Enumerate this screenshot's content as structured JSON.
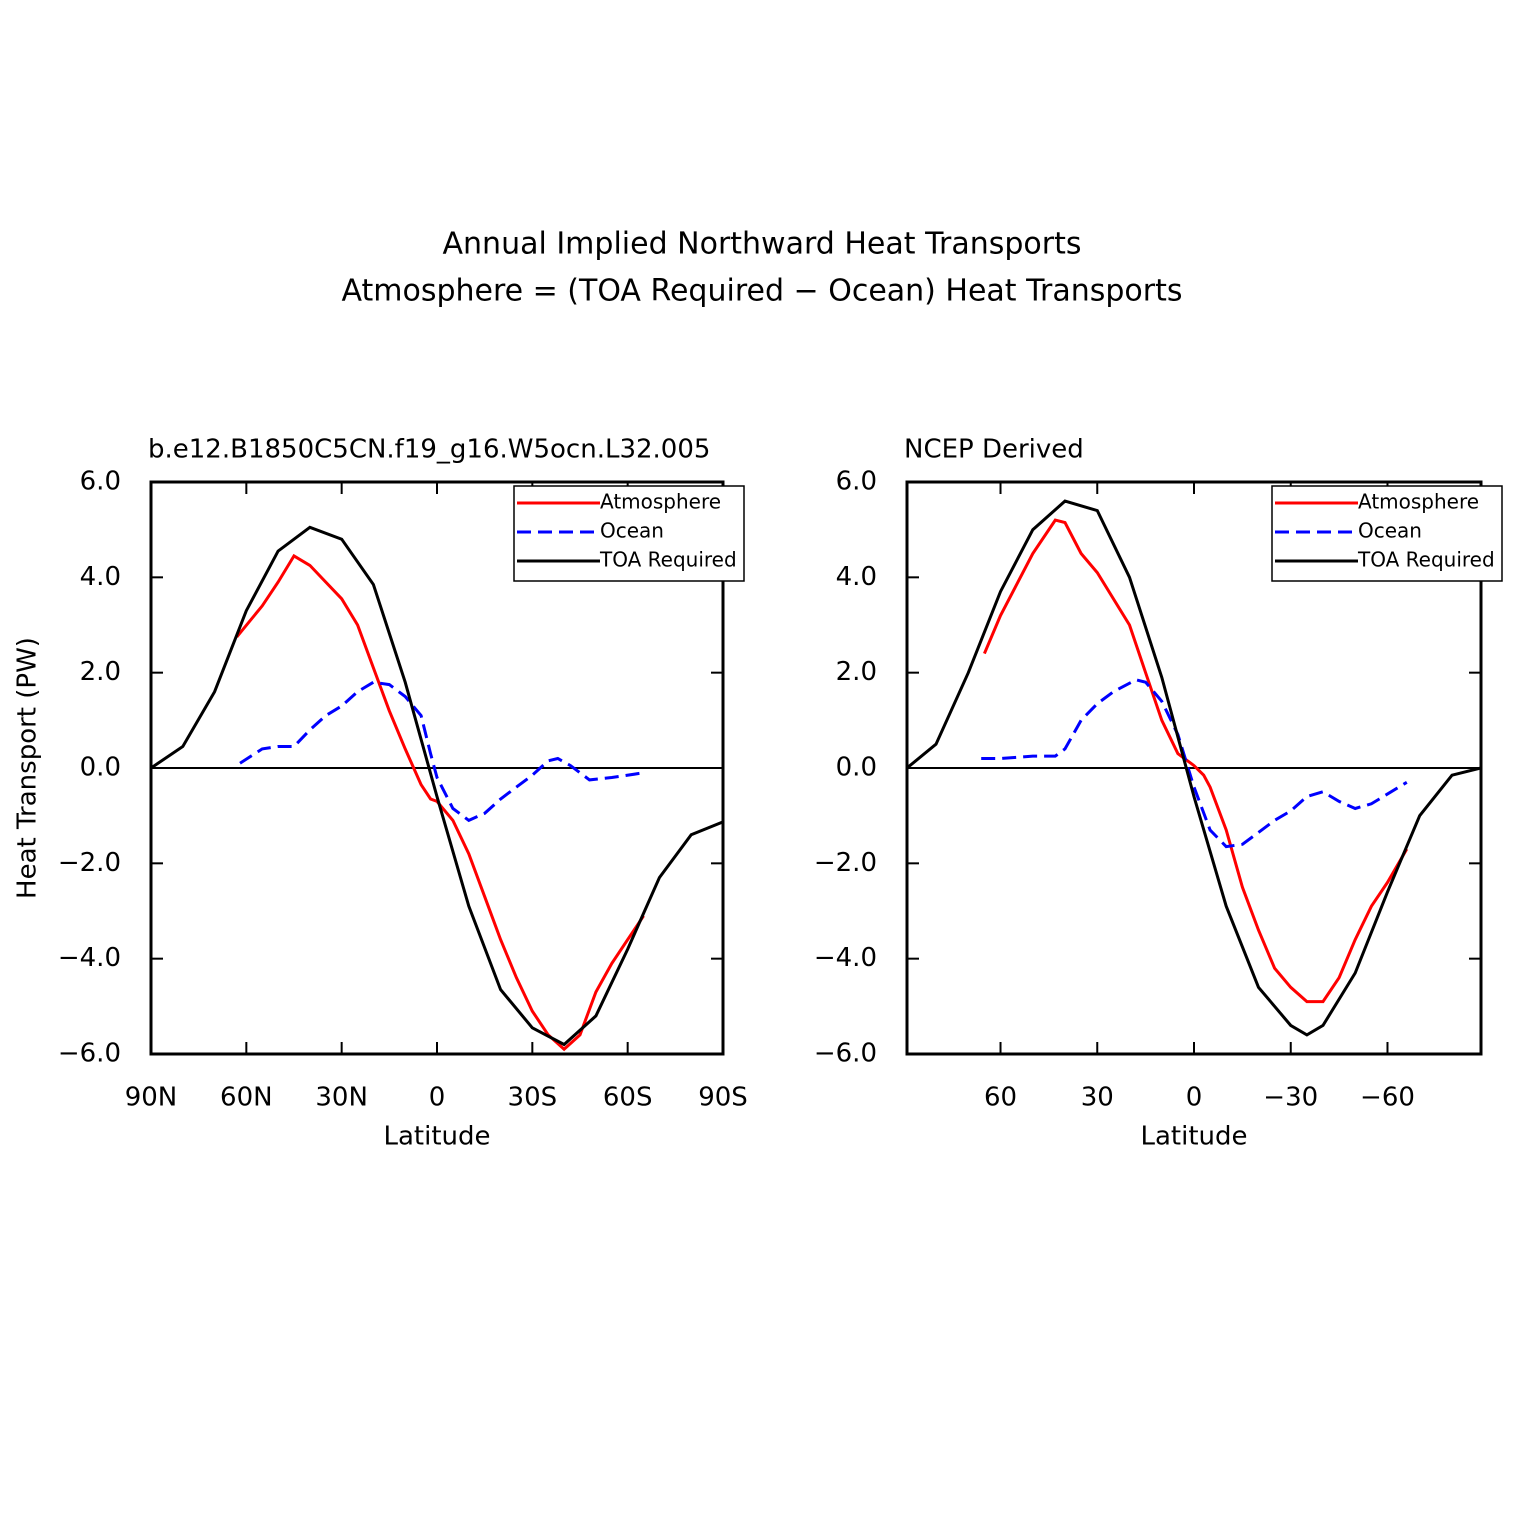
{
  "title": [
    "Annual Implied Northward Heat Transports",
    "Atmosphere = (TOA Required − Ocean) Heat Transports"
  ],
  "chart_data": [
    {
      "type": "line",
      "title": "b.e12.B1850C5CN.f19_g16.W5ocn.L32.005",
      "xlabel": "Latitude",
      "ylabel": "Heat Transport (PW)",
      "xlim": [
        90,
        -90
      ],
      "xticks": [
        {
          "value": 90,
          "label": "90N"
        },
        {
          "value": 60,
          "label": "60N"
        },
        {
          "value": 30,
          "label": "30N"
        },
        0,
        {
          "value": -30,
          "label": "30S"
        },
        {
          "value": -60,
          "label": "60S"
        },
        {
          "value": -90,
          "label": "90S"
        }
      ],
      "ylim": [
        -6,
        6
      ],
      "yticks": [
        {
          "value": 6,
          "label": "6.0"
        },
        {
          "value": 4,
          "label": "4.0"
        },
        {
          "value": 2,
          "label": "2.0"
        },
        {
          "value": 0,
          "label": "0.0"
        },
        {
          "value": -2,
          "label": "−2.0"
        },
        {
          "value": -4,
          "label": "−4.0"
        },
        {
          "value": -6,
          "label": "−6.0"
        }
      ],
      "zero_line": true,
      "legend": "upper right",
      "series": [
        {
          "name": "Atmosphere",
          "color": "#ff0000",
          "dashed": false,
          "x": [
            63,
            55,
            50,
            45,
            40,
            35,
            30,
            25,
            20,
            15,
            10,
            5,
            2,
            0,
            -5,
            -10,
            -15,
            -20,
            -25,
            -30,
            -35,
            -40,
            -45,
            -50,
            -55,
            -60,
            -65
          ],
          "values": [
            2.75,
            3.4,
            3.9,
            4.45,
            4.25,
            3.9,
            3.55,
            3.0,
            2.1,
            1.2,
            0.4,
            -0.35,
            -0.65,
            -0.7,
            -1.1,
            -1.8,
            -2.7,
            -3.6,
            -4.4,
            -5.1,
            -5.6,
            -5.9,
            -5.6,
            -4.7,
            -4.1,
            -3.6,
            -3.1
          ]
        },
        {
          "name": "Ocean",
          "color": "#0000ff",
          "dashed": true,
          "x": [
            62,
            55,
            50,
            45,
            40,
            35,
            30,
            25,
            20,
            15,
            10,
            5,
            2,
            0,
            -5,
            -10,
            -15,
            -20,
            -25,
            -30,
            -35,
            -38,
            -42,
            -48,
            -55,
            -65
          ],
          "values": [
            0.1,
            0.4,
            0.45,
            0.45,
            0.8,
            1.1,
            1.3,
            1.6,
            1.8,
            1.75,
            1.5,
            1.1,
            0.3,
            -0.2,
            -0.85,
            -1.1,
            -0.95,
            -0.65,
            -0.4,
            -0.15,
            0.15,
            0.2,
            0.05,
            -0.25,
            -0.2,
            -0.1
          ]
        },
        {
          "name": "TOA Required",
          "color": "#000000",
          "dashed": false,
          "x": [
            90,
            80,
            70,
            60,
            50,
            40,
            30,
            20,
            10,
            0,
            -10,
            -20,
            -30,
            -40,
            -50,
            -60,
            -70,
            -80,
            -90
          ],
          "values": [
            0.0,
            0.45,
            1.6,
            3.3,
            4.55,
            5.05,
            4.8,
            3.85,
            1.8,
            -0.6,
            -2.9,
            -4.65,
            -5.45,
            -5.8,
            -5.2,
            -3.8,
            -2.3,
            -1.4,
            -1.13
          ]
        }
      ]
    },
    {
      "type": "line",
      "title": "NCEP Derived",
      "xlabel": "Latitude",
      "xlim": [
        89,
        -89
      ],
      "xticks": [
        60,
        30,
        0,
        {
          "value": -30,
          "label": "−30"
        },
        {
          "value": -60,
          "label": "−60"
        }
      ],
      "ylim": [
        -6,
        6
      ],
      "yticks": [
        {
          "value": 6,
          "label": "6.0"
        },
        {
          "value": 4,
          "label": "4.0"
        },
        {
          "value": 2,
          "label": "2.0"
        },
        {
          "value": 0,
          "label": "0.0"
        },
        {
          "value": -2,
          "label": "−2.0"
        },
        {
          "value": -4,
          "label": "−4.0"
        },
        {
          "value": -6,
          "label": "−6.0"
        }
      ],
      "zero_line": true,
      "legend": "upper right",
      "series": [
        {
          "name": "Atmosphere",
          "color": "#ff0000",
          "dashed": false,
          "x": [
            65,
            60,
            50,
            43,
            40,
            35,
            30,
            20,
            15,
            10,
            5,
            0,
            -3,
            -5,
            -10,
            -15,
            -20,
            -25,
            -30,
            -35,
            -40,
            -45,
            -50,
            -55,
            -60,
            -66
          ],
          "values": [
            2.4,
            3.2,
            4.5,
            5.2,
            5.15,
            4.5,
            4.1,
            3.0,
            2.0,
            1.0,
            0.3,
            0.05,
            -0.15,
            -0.4,
            -1.3,
            -2.5,
            -3.4,
            -4.2,
            -4.6,
            -4.9,
            -4.9,
            -4.4,
            -3.6,
            -2.9,
            -2.4,
            -1.7
          ]
        },
        {
          "name": "Ocean",
          "color": "#0000ff",
          "dashed": true,
          "x": [
            66,
            60,
            50,
            43,
            40,
            35,
            30,
            25,
            18,
            15,
            10,
            5,
            0,
            -5,
            -10,
            -15,
            -20,
            -25,
            -30,
            -35,
            -40,
            -45,
            -50,
            -55,
            -66
          ],
          "values": [
            0.2,
            0.2,
            0.25,
            0.25,
            0.4,
            1.0,
            1.35,
            1.6,
            1.85,
            1.8,
            1.4,
            0.7,
            -0.4,
            -1.3,
            -1.65,
            -1.6,
            -1.35,
            -1.1,
            -0.9,
            -0.6,
            -0.5,
            -0.7,
            -0.85,
            -0.75,
            -0.3
          ]
        },
        {
          "name": "TOA Required",
          "color": "#000000",
          "dashed": false,
          "x": [
            89,
            80,
            70,
            60,
            50,
            40,
            30,
            20,
            10,
            0,
            -10,
            -20,
            -30,
            -35,
            -40,
            -50,
            -60,
            -70,
            -80,
            -89
          ],
          "values": [
            0.0,
            0.5,
            2.0,
            3.7,
            5.0,
            5.6,
            5.4,
            4.0,
            1.9,
            -0.6,
            -2.9,
            -4.6,
            -5.4,
            -5.6,
            -5.4,
            -4.3,
            -2.6,
            -1.0,
            -0.15,
            0.0
          ]
        }
      ]
    }
  ]
}
